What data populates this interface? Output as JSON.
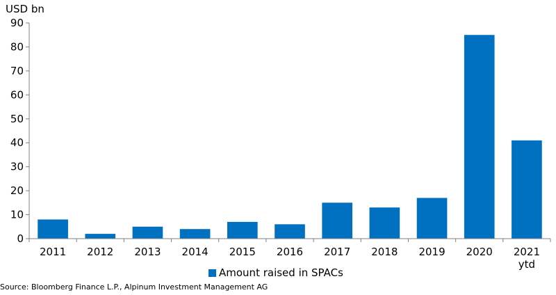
{
  "chart_data": {
    "type": "bar",
    "unit_label": "USD bn",
    "categories": [
      "2011",
      "2012",
      "2013",
      "2014",
      "2015",
      "2016",
      "2017",
      "2018",
      "2019",
      "2020",
      "2021\nytd"
    ],
    "series": [
      {
        "name": "Amount raised in SPACs",
        "values": [
          8,
          2,
          5,
          4,
          7,
          6,
          15,
          13,
          17,
          85,
          41
        ]
      }
    ],
    "ylim": [
      0,
      90
    ],
    "yticks": [
      0,
      10,
      20,
      30,
      40,
      50,
      60,
      70,
      80,
      90
    ],
    "grid": false,
    "legend_position": "bottom"
  },
  "colors": {
    "bar": "#0070c0",
    "axis": "#808080"
  },
  "source": "Source: Bloomberg Finance L.P., Alpinum Investment Management AG"
}
